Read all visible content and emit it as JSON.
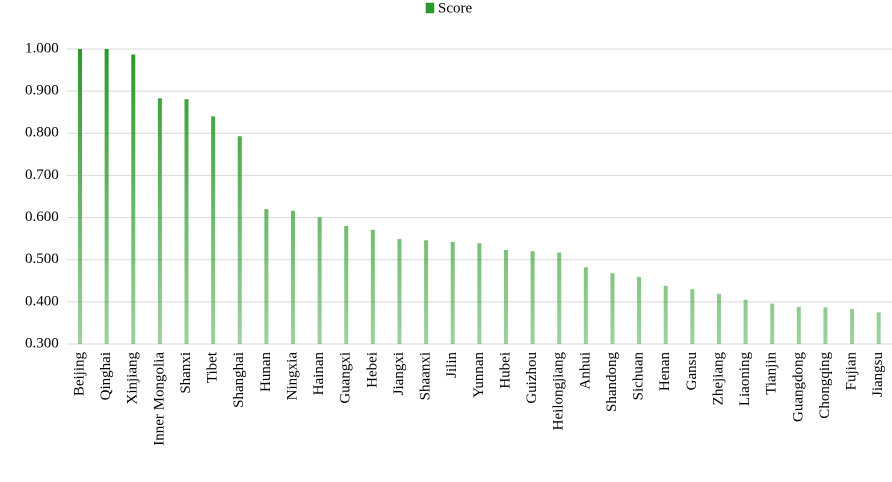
{
  "chart_data": {
    "type": "bar",
    "legend": "top",
    "categories": [
      "Beijing",
      "Qinghai",
      "Xinjiang",
      "Inner Mongolia",
      "Shanxi",
      "Tibet",
      "Shanghai",
      "Hunan",
      "Ningxia",
      "Hainan",
      "Guangxi",
      "Hebei",
      "Jiangxi",
      "Shaanxi",
      "Jilin",
      "Yunnan",
      "Hubei",
      "Guizhou",
      "Heilongjiang",
      "Anhui",
      "Shandong",
      "Sichuan",
      "Henan",
      "Gansu",
      "Zhejiang",
      "Liaoning",
      "Tianjin",
      "Guangdong",
      "Chongqing",
      "Fujian",
      "Jiangsu"
    ],
    "series": [
      {
        "name": "Score",
        "color": "#2a9a2a",
        "values": [
          1.0,
          1.0,
          0.987,
          0.883,
          0.881,
          0.84,
          0.793,
          0.62,
          0.616,
          0.601,
          0.58,
          0.571,
          0.549,
          0.546,
          0.542,
          0.539,
          0.523,
          0.52,
          0.517,
          0.482,
          0.468,
          0.459,
          0.438,
          0.43,
          0.419,
          0.405,
          0.396,
          0.388,
          0.387,
          0.383,
          0.375
        ]
      }
    ],
    "ylim": [
      0.3,
      1.0
    ],
    "yticks": [
      {
        "value": 0.3,
        "label": "0.300"
      },
      {
        "value": 0.4,
        "label": "0.400"
      },
      {
        "value": 0.5,
        "label": "0.500"
      },
      {
        "value": 0.6,
        "label": "0.600"
      },
      {
        "value": 0.7,
        "label": "0.700"
      },
      {
        "value": 0.8,
        "label": "0.800"
      },
      {
        "value": 0.9,
        "label": "0.900"
      },
      {
        "value": 1.0,
        "label": "1.000"
      }
    ],
    "grid": true
  }
}
